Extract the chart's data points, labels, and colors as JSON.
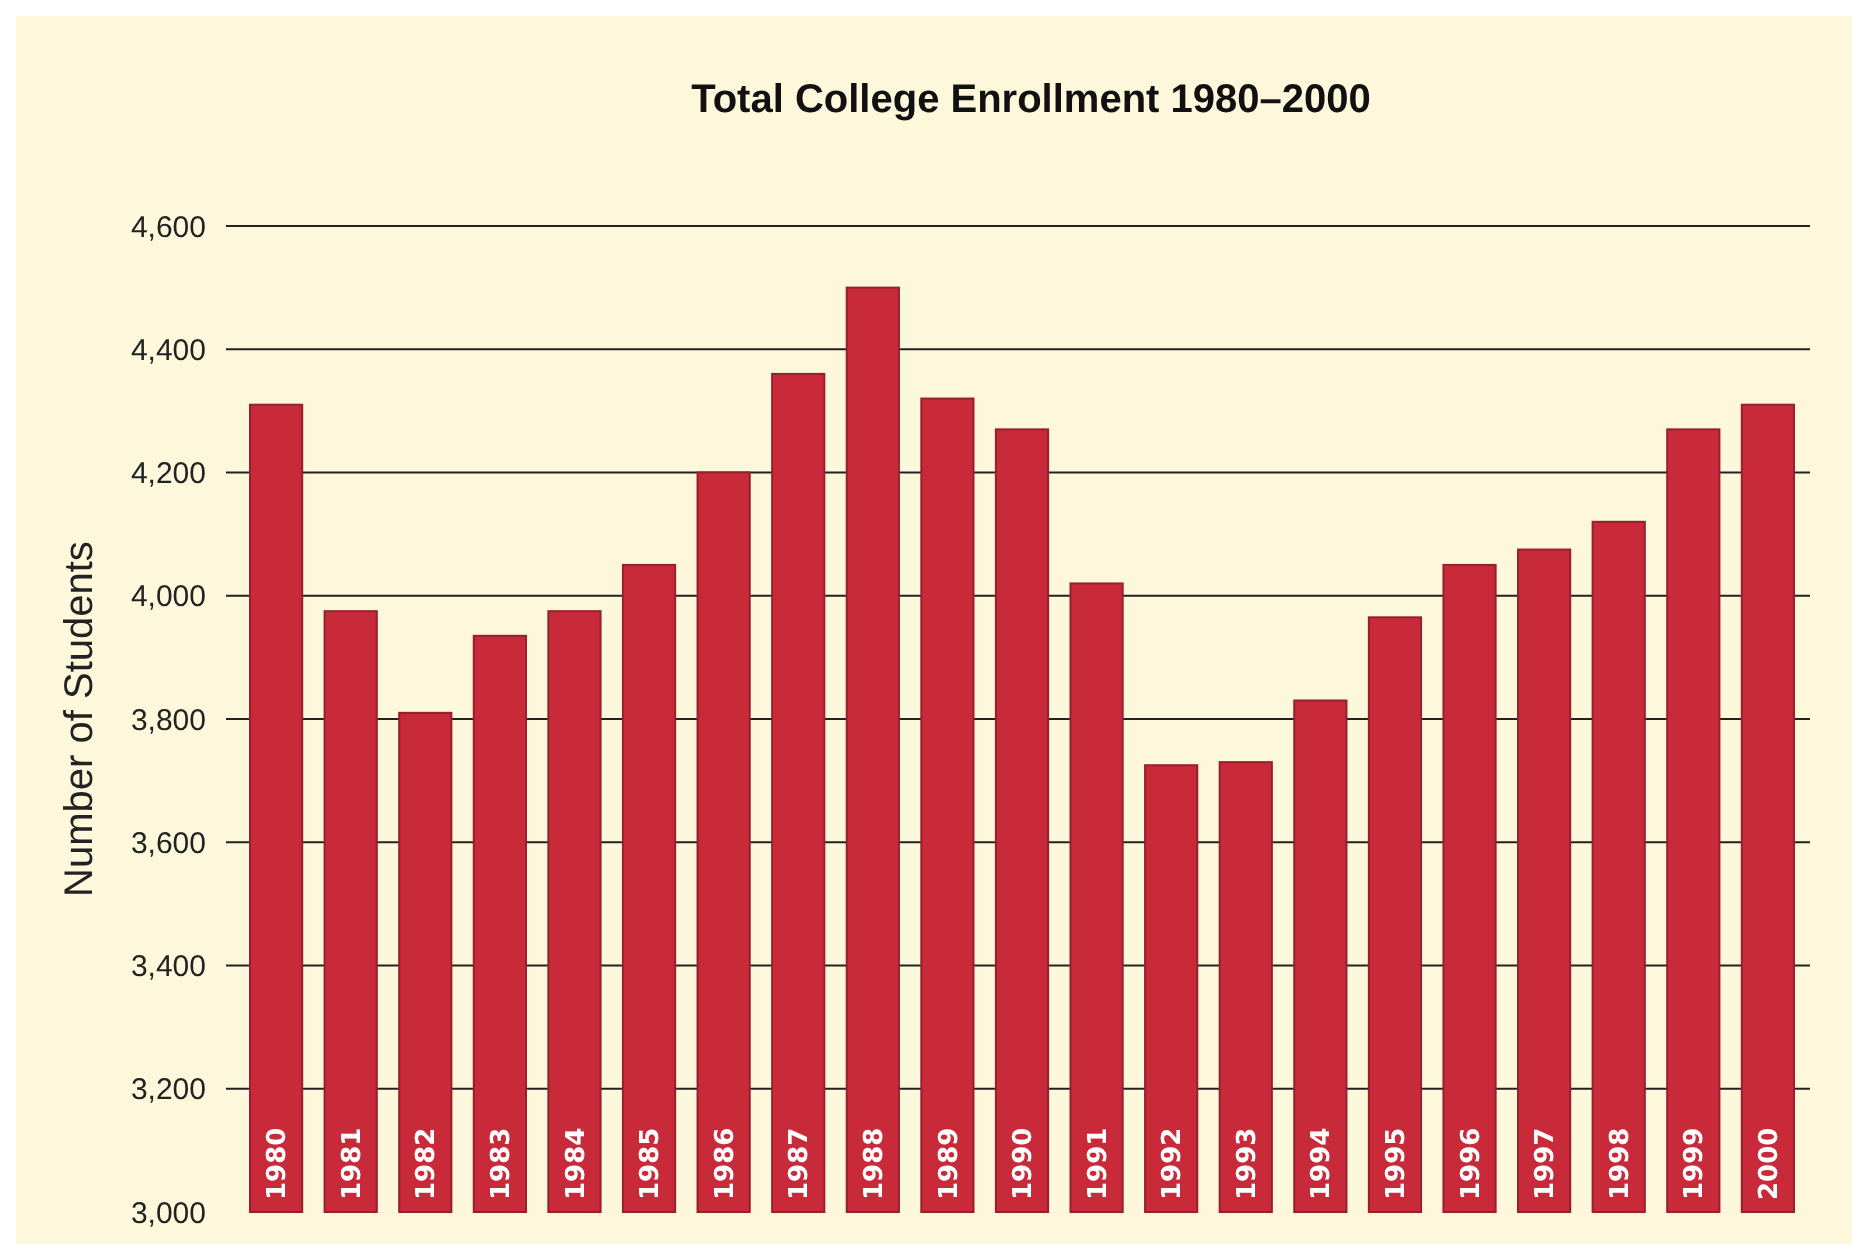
{
  "chart_data": {
    "type": "bar",
    "title": "Total College Enrollment 1980–2000",
    "ylabel": "Number of Students",
    "categories": [
      "1980",
      "1981",
      "1982",
      "1983",
      "1984",
      "1985",
      "1986",
      "1987",
      "1988",
      "1989",
      "1990",
      "1991",
      "1992",
      "1993",
      "1994",
      "1995",
      "1996",
      "1997",
      "1998",
      "1999",
      "2000"
    ],
    "values": [
      4310,
      3975,
      3810,
      3935,
      3975,
      4050,
      4200,
      4360,
      4500,
      4320,
      4270,
      4020,
      3725,
      3730,
      3830,
      3965,
      4050,
      4075,
      4120,
      4270,
      4310
    ],
    "color": "#c92a3a",
    "ylim": [
      3000,
      4600
    ],
    "yticks": [
      {
        "value": 3000,
        "label": "3,000"
      },
      {
        "value": 3200,
        "label": "3,200"
      },
      {
        "value": 3400,
        "label": "3,400"
      },
      {
        "value": 3600,
        "label": "3,600"
      },
      {
        "value": 3800,
        "label": "3,800"
      },
      {
        "value": 4000,
        "label": "4,000"
      },
      {
        "value": 4200,
        "label": "4,200"
      },
      {
        "value": 4400,
        "label": "4,400"
      },
      {
        "value": 4600,
        "label": "4,600"
      }
    ],
    "grid": "y"
  }
}
